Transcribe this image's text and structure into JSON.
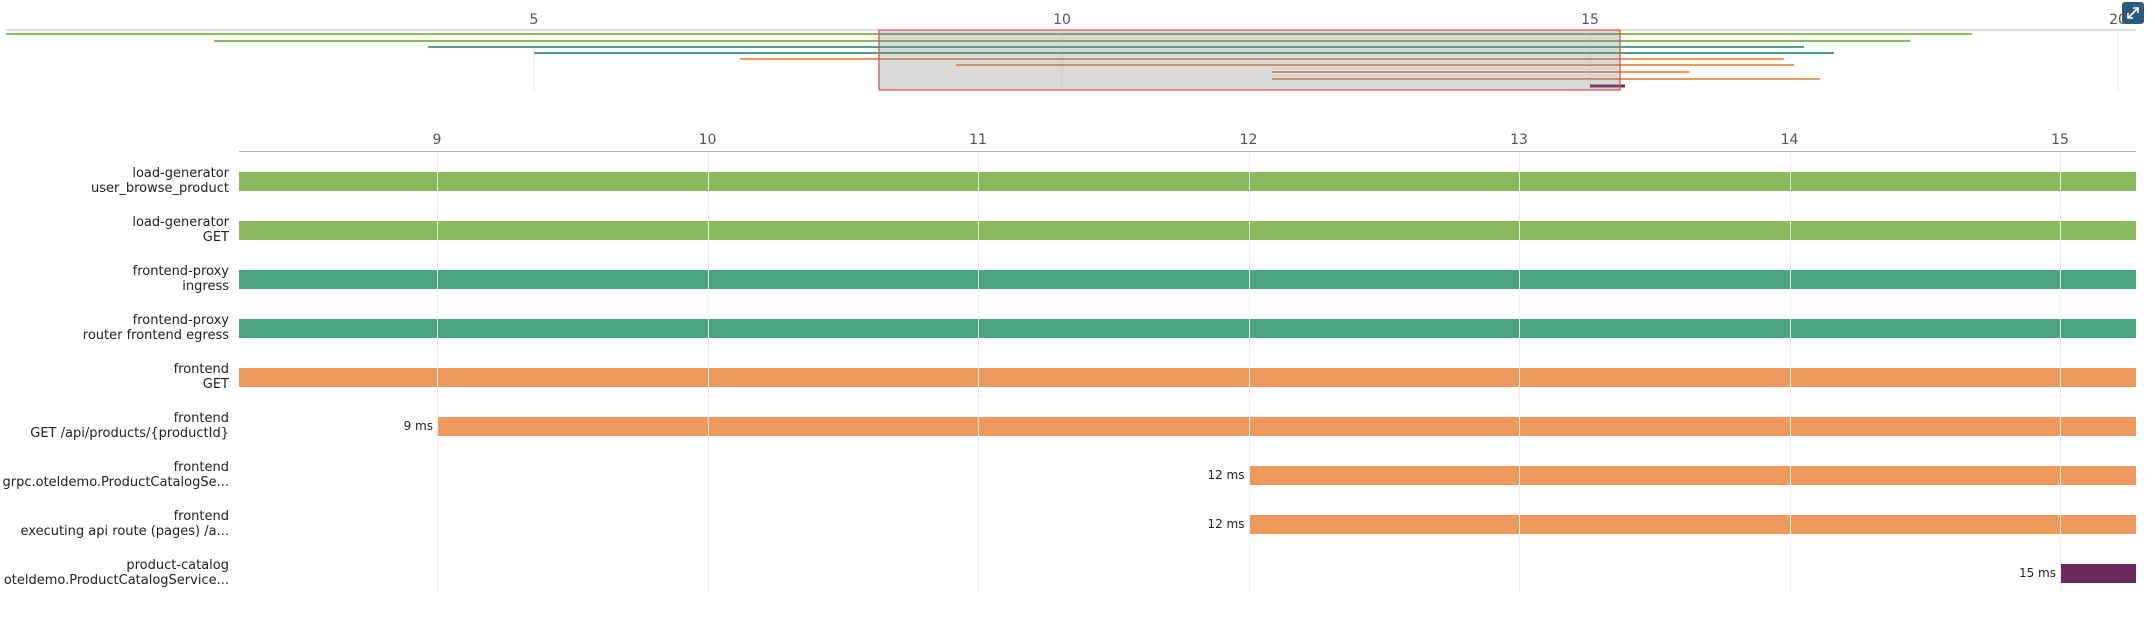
{
  "colors": {
    "load_generator": "#8aba5d",
    "frontend_proxy": "#4ca37f",
    "frontend": "#ee9a5e",
    "product_catalog": "#6b2a5b",
    "selection": "#dc4a4a"
  },
  "overview": {
    "ticks": [
      "5",
      "10",
      "15",
      "20"
    ],
    "expand_icon": "expand-icon"
  },
  "main_axis": {
    "ticks": [
      "9",
      "10",
      "11",
      "12",
      "13",
      "14",
      "15"
    ]
  },
  "spans": [
    {
      "service": "load-generator",
      "operation": "user_browse_product",
      "start_ms": 7.2,
      "color_key": "load_generator",
      "show_time": false
    },
    {
      "service": "load-generator",
      "operation": "GET",
      "start_ms": 7.2,
      "color_key": "load_generator",
      "show_time": false
    },
    {
      "service": "frontend-proxy",
      "operation": "ingress",
      "start_ms": 7.2,
      "color_key": "frontend_proxy",
      "show_time": false
    },
    {
      "service": "frontend-proxy",
      "operation": "router frontend egress",
      "start_ms": 7.2,
      "color_key": "frontend_proxy",
      "show_time": false
    },
    {
      "service": "frontend",
      "operation": "GET",
      "start_ms": 7.2,
      "color_key": "frontend",
      "show_time": false
    },
    {
      "service": "frontend",
      "operation": "GET /api/products/{productId}",
      "start_ms": 9,
      "time_label": "9 ms",
      "color_key": "frontend",
      "show_time": true
    },
    {
      "service": "frontend",
      "operation": "grpc.oteldemo.ProductCatalogSe...",
      "start_ms": 12,
      "time_label": "12 ms",
      "color_key": "frontend",
      "show_time": true
    },
    {
      "service": "frontend",
      "operation": "executing api route (pages) /a...",
      "start_ms": 12,
      "time_label": "12 ms",
      "color_key": "frontend",
      "show_time": true
    },
    {
      "service": "product-catalog",
      "operation": "oteldemo.ProductCatalogService...",
      "start_ms": 15,
      "time_label": "15 ms",
      "color_key": "product_catalog",
      "show_time": true
    }
  ]
}
